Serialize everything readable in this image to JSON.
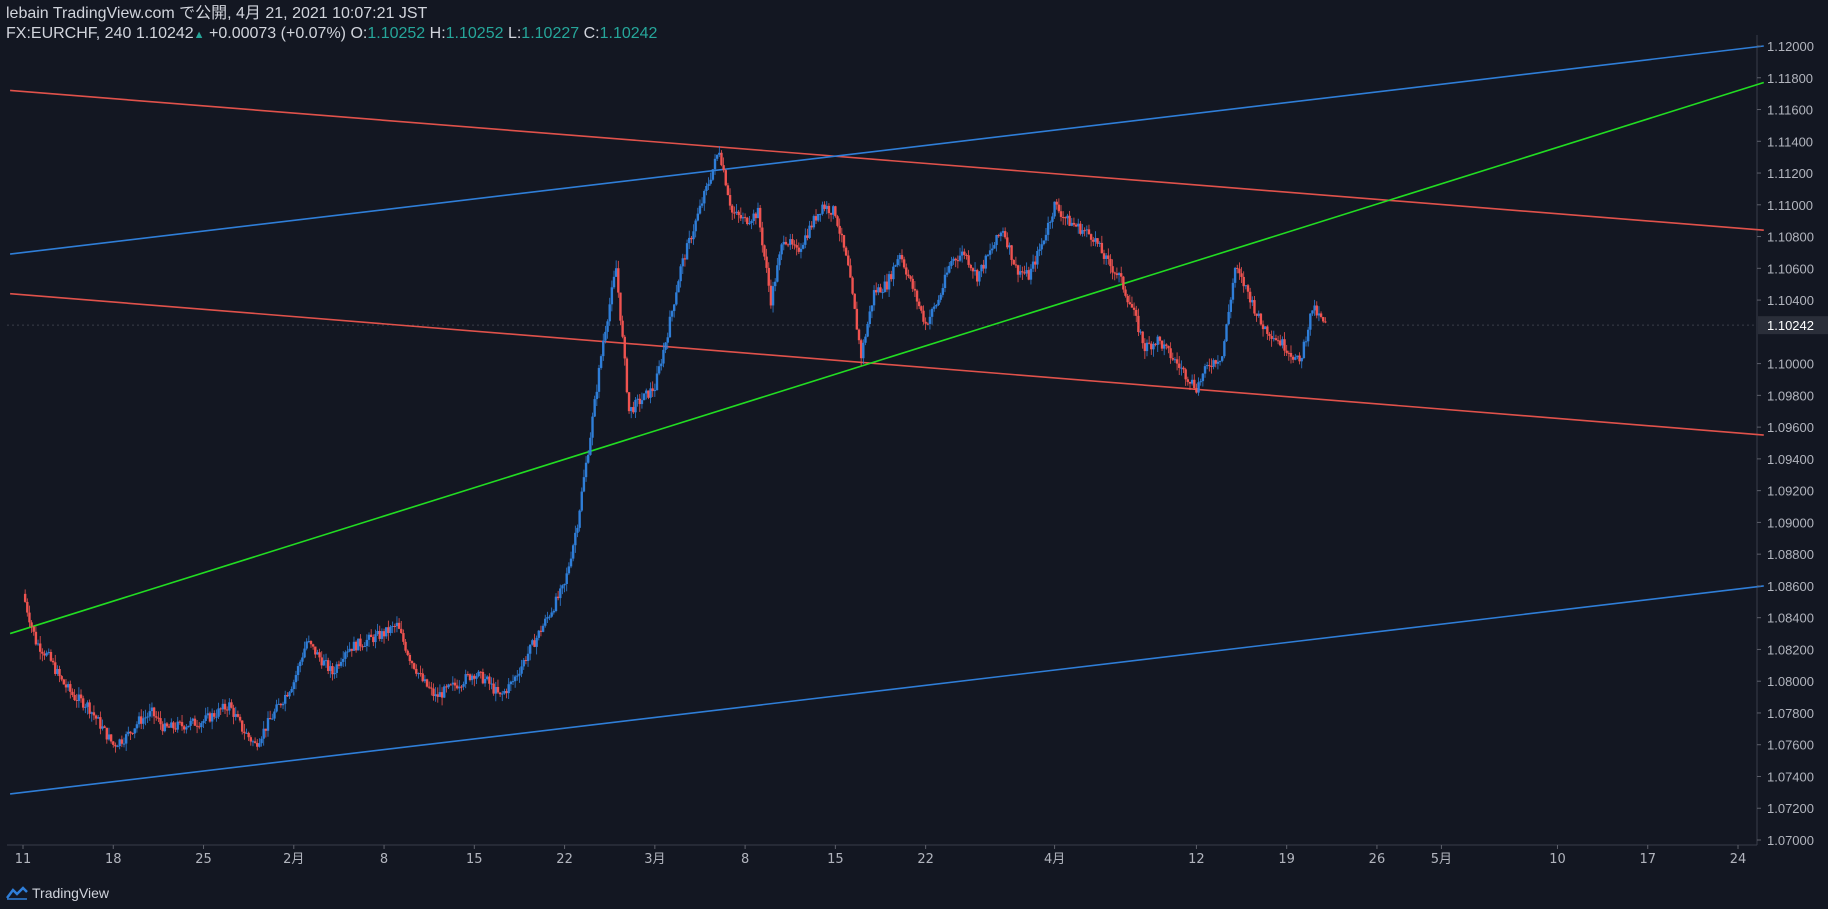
{
  "header": {
    "line1": "lebain TradingView.com で公開, 4月 21, 2021 10:07:21 JST",
    "symbol": "FX:EURCHF, 240",
    "last": "1.10242",
    "up_arrow": "▲",
    "change": "+0.00073 (+0.07%)",
    "o_label": "O:",
    "o_val": "1.10252",
    "h_label": "H:",
    "h_val": "1.10252",
    "l_label": "L:",
    "l_val": "1.10227",
    "c_label": "C:",
    "c_val": "1.10242"
  },
  "footer": {
    "brand": "TradingView",
    "logo_icon": "tradingview-logo-icon"
  },
  "colors": {
    "background": "#131722",
    "up": "#2f7ed8",
    "down": "#ef5350",
    "red_line": "#e0524b",
    "blue_line": "#2f7ed8",
    "green_line": "#22dd22",
    "last_price_bg": "#2a2e39"
  },
  "chart_data": {
    "type": "candlestick",
    "symbol": "FX:EURCHF",
    "interval": "240",
    "ylim": [
      1.07,
      1.12
    ],
    "y_ticks": [
      "1.12000",
      "1.11800",
      "1.11600",
      "1.11400",
      "1.11200",
      "1.11000",
      "1.10800",
      "1.10600",
      "1.10400",
      "1.10242",
      "1.10000",
      "1.09800",
      "1.09600",
      "1.09400",
      "1.09200",
      "1.09000",
      "1.08800",
      "1.08600",
      "1.08400",
      "1.08200",
      "1.08000",
      "1.07800",
      "1.07600",
      "1.07400",
      "1.07200",
      "1.07000"
    ],
    "last_price": 1.10242,
    "x_ticks": [
      {
        "label": "11",
        "date": "2021-01-11"
      },
      {
        "label": "18",
        "date": "2021-01-18"
      },
      {
        "label": "25",
        "date": "2021-01-25"
      },
      {
        "label": "2月",
        "date": "2021-02-01"
      },
      {
        "label": "8",
        "date": "2021-02-08"
      },
      {
        "label": "15",
        "date": "2021-02-15"
      },
      {
        "label": "22",
        "date": "2021-02-22"
      },
      {
        "label": "3月",
        "date": "2021-03-01"
      },
      {
        "label": "8",
        "date": "2021-03-08"
      },
      {
        "label": "15",
        "date": "2021-03-15"
      },
      {
        "label": "22",
        "date": "2021-03-22"
      },
      {
        "label": "4月",
        "date": "2021-04-01"
      },
      {
        "label": "12",
        "date": "2021-04-12"
      },
      {
        "label": "19",
        "date": "2021-04-19"
      },
      {
        "label": "26",
        "date": "2021-04-26"
      },
      {
        "label": "5月",
        "date": "2021-05-01"
      },
      {
        "label": "10",
        "date": "2021-05-10"
      },
      {
        "label": "17",
        "date": "2021-05-17"
      },
      {
        "label": "24",
        "date": "2021-05-24"
      }
    ],
    "price_path": [
      [
        "2021-01-11",
        1.0855
      ],
      [
        "2021-01-12",
        1.0825
      ],
      [
        "2021-01-13",
        1.0815
      ],
      [
        "2021-01-14",
        1.08
      ],
      [
        "2021-01-15",
        1.079
      ],
      [
        "2021-01-16",
        1.0785
      ],
      [
        "2021-01-18",
        1.076
      ],
      [
        "2021-01-19",
        1.0765
      ],
      [
        "2021-01-20",
        1.0775
      ],
      [
        "2021-01-21",
        1.078
      ],
      [
        "2021-01-22",
        1.077
      ],
      [
        "2021-01-25",
        1.0775
      ],
      [
        "2021-01-26",
        1.078
      ],
      [
        "2021-01-27",
        1.0785
      ],
      [
        "2021-01-28",
        1.077
      ],
      [
        "2021-01-29",
        1.076
      ],
      [
        "2021-02-01",
        1.08
      ],
      [
        "2021-02-02",
        1.0825
      ],
      [
        "2021-02-03",
        1.0815
      ],
      [
        "2021-02-04",
        1.0805
      ],
      [
        "2021-02-05",
        1.082
      ],
      [
        "2021-02-08",
        1.083
      ],
      [
        "2021-02-09",
        1.0835
      ],
      [
        "2021-02-10",
        1.0815
      ],
      [
        "2021-02-11",
        1.08
      ],
      [
        "2021-02-12",
        1.079
      ],
      [
        "2021-02-15",
        1.0805
      ],
      [
        "2021-02-16",
        1.08
      ],
      [
        "2021-02-17",
        1.079
      ],
      [
        "2021-02-18",
        1.08
      ],
      [
        "2021-02-19",
        1.0815
      ],
      [
        "2021-02-20",
        1.083
      ],
      [
        "2021-02-22",
        1.086
      ],
      [
        "2021-02-23",
        1.09
      ],
      [
        "2021-02-24",
        1.0955
      ],
      [
        "2021-02-25",
        1.1015
      ],
      [
        "2021-02-26",
        1.106
      ],
      [
        "2021-02-27",
        1.097
      ],
      [
        "2021-03-01",
        1.0985
      ],
      [
        "2021-03-02",
        1.102
      ],
      [
        "2021-03-03",
        1.106
      ],
      [
        "2021-03-04",
        1.1085
      ],
      [
        "2021-03-05",
        1.111
      ],
      [
        "2021-03-06",
        1.1135
      ],
      [
        "2021-03-07",
        1.1095
      ],
      [
        "2021-03-08",
        1.109
      ],
      [
        "2021-03-09",
        1.1095
      ],
      [
        "2021-03-10",
        1.104
      ],
      [
        "2021-03-11",
        1.108
      ],
      [
        "2021-03-12",
        1.107
      ],
      [
        "2021-03-14",
        1.11
      ],
      [
        "2021-03-15",
        1.1095
      ],
      [
        "2021-03-16",
        1.106
      ],
      [
        "2021-03-17",
        1.1005
      ],
      [
        "2021-03-18",
        1.1045
      ],
      [
        "2021-03-19",
        1.105
      ],
      [
        "2021-03-20",
        1.107
      ],
      [
        "2021-03-22",
        1.1025
      ],
      [
        "2021-03-23",
        1.104
      ],
      [
        "2021-03-24",
        1.1065
      ],
      [
        "2021-03-25",
        1.107
      ],
      [
        "2021-03-26",
        1.1055
      ],
      [
        "2021-03-27",
        1.107
      ],
      [
        "2021-03-28",
        1.1085
      ],
      [
        "2021-03-29",
        1.106
      ],
      [
        "2021-03-30",
        1.1055
      ],
      [
        "2021-03-31",
        1.1075
      ],
      [
        "2021-04-01",
        1.11
      ],
      [
        "2021-04-02",
        1.109
      ],
      [
        "2021-04-03",
        1.1085
      ],
      [
        "2021-04-04",
        1.108
      ],
      [
        "2021-04-05",
        1.1065
      ],
      [
        "2021-04-06",
        1.1055
      ],
      [
        "2021-04-07",
        1.1035
      ],
      [
        "2021-04-08",
        1.101
      ],
      [
        "2021-04-09",
        1.1015
      ],
      [
        "2021-04-10",
        1.1005
      ],
      [
        "2021-04-12",
        1.0985
      ],
      [
        "2021-04-13",
        1.1
      ],
      [
        "2021-04-14",
        1.1005
      ],
      [
        "2021-04-15",
        1.106
      ],
      [
        "2021-04-16",
        1.1045
      ],
      [
        "2021-04-17",
        1.1025
      ],
      [
        "2021-04-19",
        1.101
      ],
      [
        "2021-04-20",
        1.1
      ],
      [
        "2021-04-21",
        1.1035
      ],
      [
        "2021-04-22",
        1.1024
      ]
    ],
    "trend_lines": [
      {
        "color": "red",
        "points": [
          [
            "2021-01-10",
            1.1172
          ],
          [
            "2021-05-26",
            1.1084
          ]
        ]
      },
      {
        "color": "red",
        "points": [
          [
            "2021-01-10",
            1.1044
          ],
          [
            "2021-05-26",
            1.0955
          ]
        ]
      },
      {
        "color": "blue",
        "points": [
          [
            "2021-01-10",
            1.1069
          ],
          [
            "2021-05-26",
            1.12
          ]
        ]
      },
      {
        "color": "blue",
        "points": [
          [
            "2021-01-10",
            1.0729
          ],
          [
            "2021-05-26",
            1.086
          ]
        ]
      },
      {
        "color": "green",
        "points": [
          [
            "2021-01-10",
            1.083
          ],
          [
            "2021-05-26",
            1.1177
          ]
        ]
      }
    ]
  }
}
